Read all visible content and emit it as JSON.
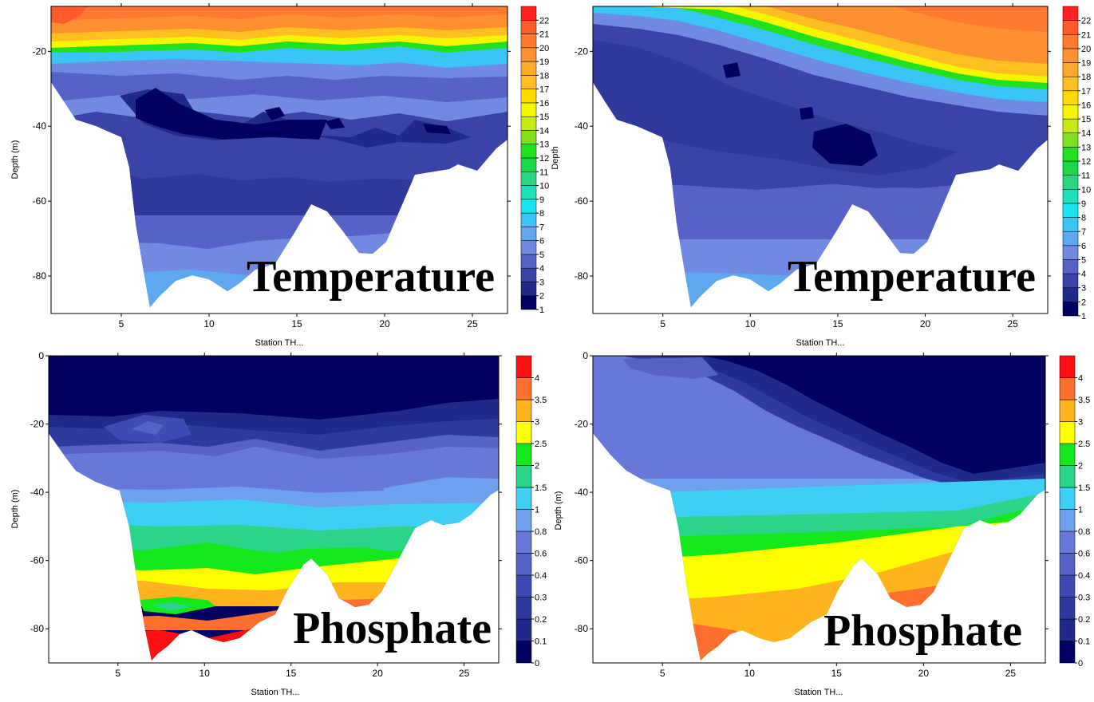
{
  "chart_data": [
    {
      "type": "heatmap",
      "title": "Temperature",
      "xlabel": "Station TH...",
      "ylabel": "Depth (m)",
      "colorbar_label": "Depth",
      "xlim": [
        1,
        27
      ],
      "ylim": [
        -90,
        -8
      ],
      "x_ticks": [
        5,
        10,
        15,
        20,
        25
      ],
      "y_ticks": [
        -20,
        -40,
        -60,
        -80
      ],
      "levels": [
        "1",
        "2",
        "3",
        "4",
        "5",
        "6",
        "7",
        "8",
        "9",
        "10",
        "11",
        "12",
        "13",
        "14",
        "15",
        "16",
        "17",
        "18",
        "19",
        "20",
        "21",
        "22"
      ],
      "colors": [
        "#000060",
        "#1f2a8a",
        "#3a44a8",
        "#5662c6",
        "#6f8ae0",
        "#5ea8f0",
        "#39c6f5",
        "#1de2f0",
        "#1fe0b8",
        "#2ad480",
        "#1cd848",
        "#20e020",
        "#7de020",
        "#c8ea14",
        "#f5f500",
        "#ffd900",
        "#ffbf20",
        "#ffa830",
        "#ff9030",
        "#ff7a30",
        "#ff5a2a",
        "#ff2020"
      ],
      "surface_level": 20,
      "thermocline_depth": [
        -16,
        -16,
        -15,
        -15,
        -16,
        -18,
        -19,
        -17,
        -16,
        -15,
        -13
      ],
      "bottom_depth": [
        -24,
        -30,
        -38,
        -39,
        -88,
        -80,
        -84,
        -71,
        -60,
        -73,
        -51,
        -48,
        -50,
        -41
      ]
    },
    {
      "type": "heatmap",
      "title": "Temperature",
      "xlabel": "Station TH...",
      "ylabel": "Depth (m)",
      "xlim": [
        1,
        27
      ],
      "ylim": [
        -90,
        -8
      ],
      "x_ticks": [
        5,
        10,
        15,
        20,
        25
      ],
      "y_ticks": [
        -20,
        -40,
        -60,
        -80
      ],
      "levels": [
        "1",
        "2",
        "3",
        "4",
        "5",
        "6",
        "7",
        "8",
        "9",
        "10",
        "11",
        "12",
        "13",
        "14",
        "15",
        "16",
        "17",
        "18",
        "19",
        "20",
        "21",
        "22"
      ],
      "surface_level": 20,
      "thermocline_depth": [
        -6,
        -8,
        -8,
        -10,
        -14,
        -17,
        -19,
        -21,
        -22,
        -23,
        -24
      ],
      "bottom_depth": [
        -24,
        -30,
        -38,
        -39,
        -88,
        -80,
        -84,
        -71,
        -60,
        -73,
        -51,
        -48,
        -50,
        -41
      ]
    },
    {
      "type": "heatmap",
      "title": "Phosphate",
      "xlabel": "Station TH...",
      "ylabel": "Depth (m)",
      "xlim": [
        1,
        27
      ],
      "ylim": [
        -90,
        0
      ],
      "x_ticks": [
        5,
        10,
        15,
        20,
        25
      ],
      "y_ticks": [
        0,
        -20,
        -40,
        -60,
        -80
      ],
      "levels": [
        "0",
        "0.1",
        "0.2",
        "0.3",
        "0.4",
        "0.6",
        "0.8",
        "1",
        "1.5",
        "2",
        "2.5",
        "3",
        "3.5",
        "4"
      ],
      "colors": [
        "#000060",
        "#1f2a8a",
        "#2e3a9e",
        "#3f4cb4",
        "#5562c6",
        "#6878d8",
        "#6fa0ee",
        "#3fcff5",
        "#2ad488",
        "#15e81a",
        "#ffff00",
        "#ffb41e",
        "#ff7030",
        "#ff1010"
      ]
    },
    {
      "type": "heatmap",
      "title": "Phosphate",
      "xlabel": "Station TH...",
      "ylabel": "Depth (m)",
      "xlim": [
        1,
        27
      ],
      "ylim": [
        -90,
        0
      ],
      "x_ticks": [
        5,
        10,
        15,
        20,
        25
      ],
      "y_ticks": [
        0,
        -20,
        -40,
        -60,
        -80
      ],
      "levels": [
        "0",
        "0.1",
        "0.2",
        "0.3",
        "0.4",
        "0.6",
        "0.8",
        "1",
        "1.5",
        "2",
        "2.5",
        "3",
        "3.5",
        "4"
      ]
    }
  ]
}
